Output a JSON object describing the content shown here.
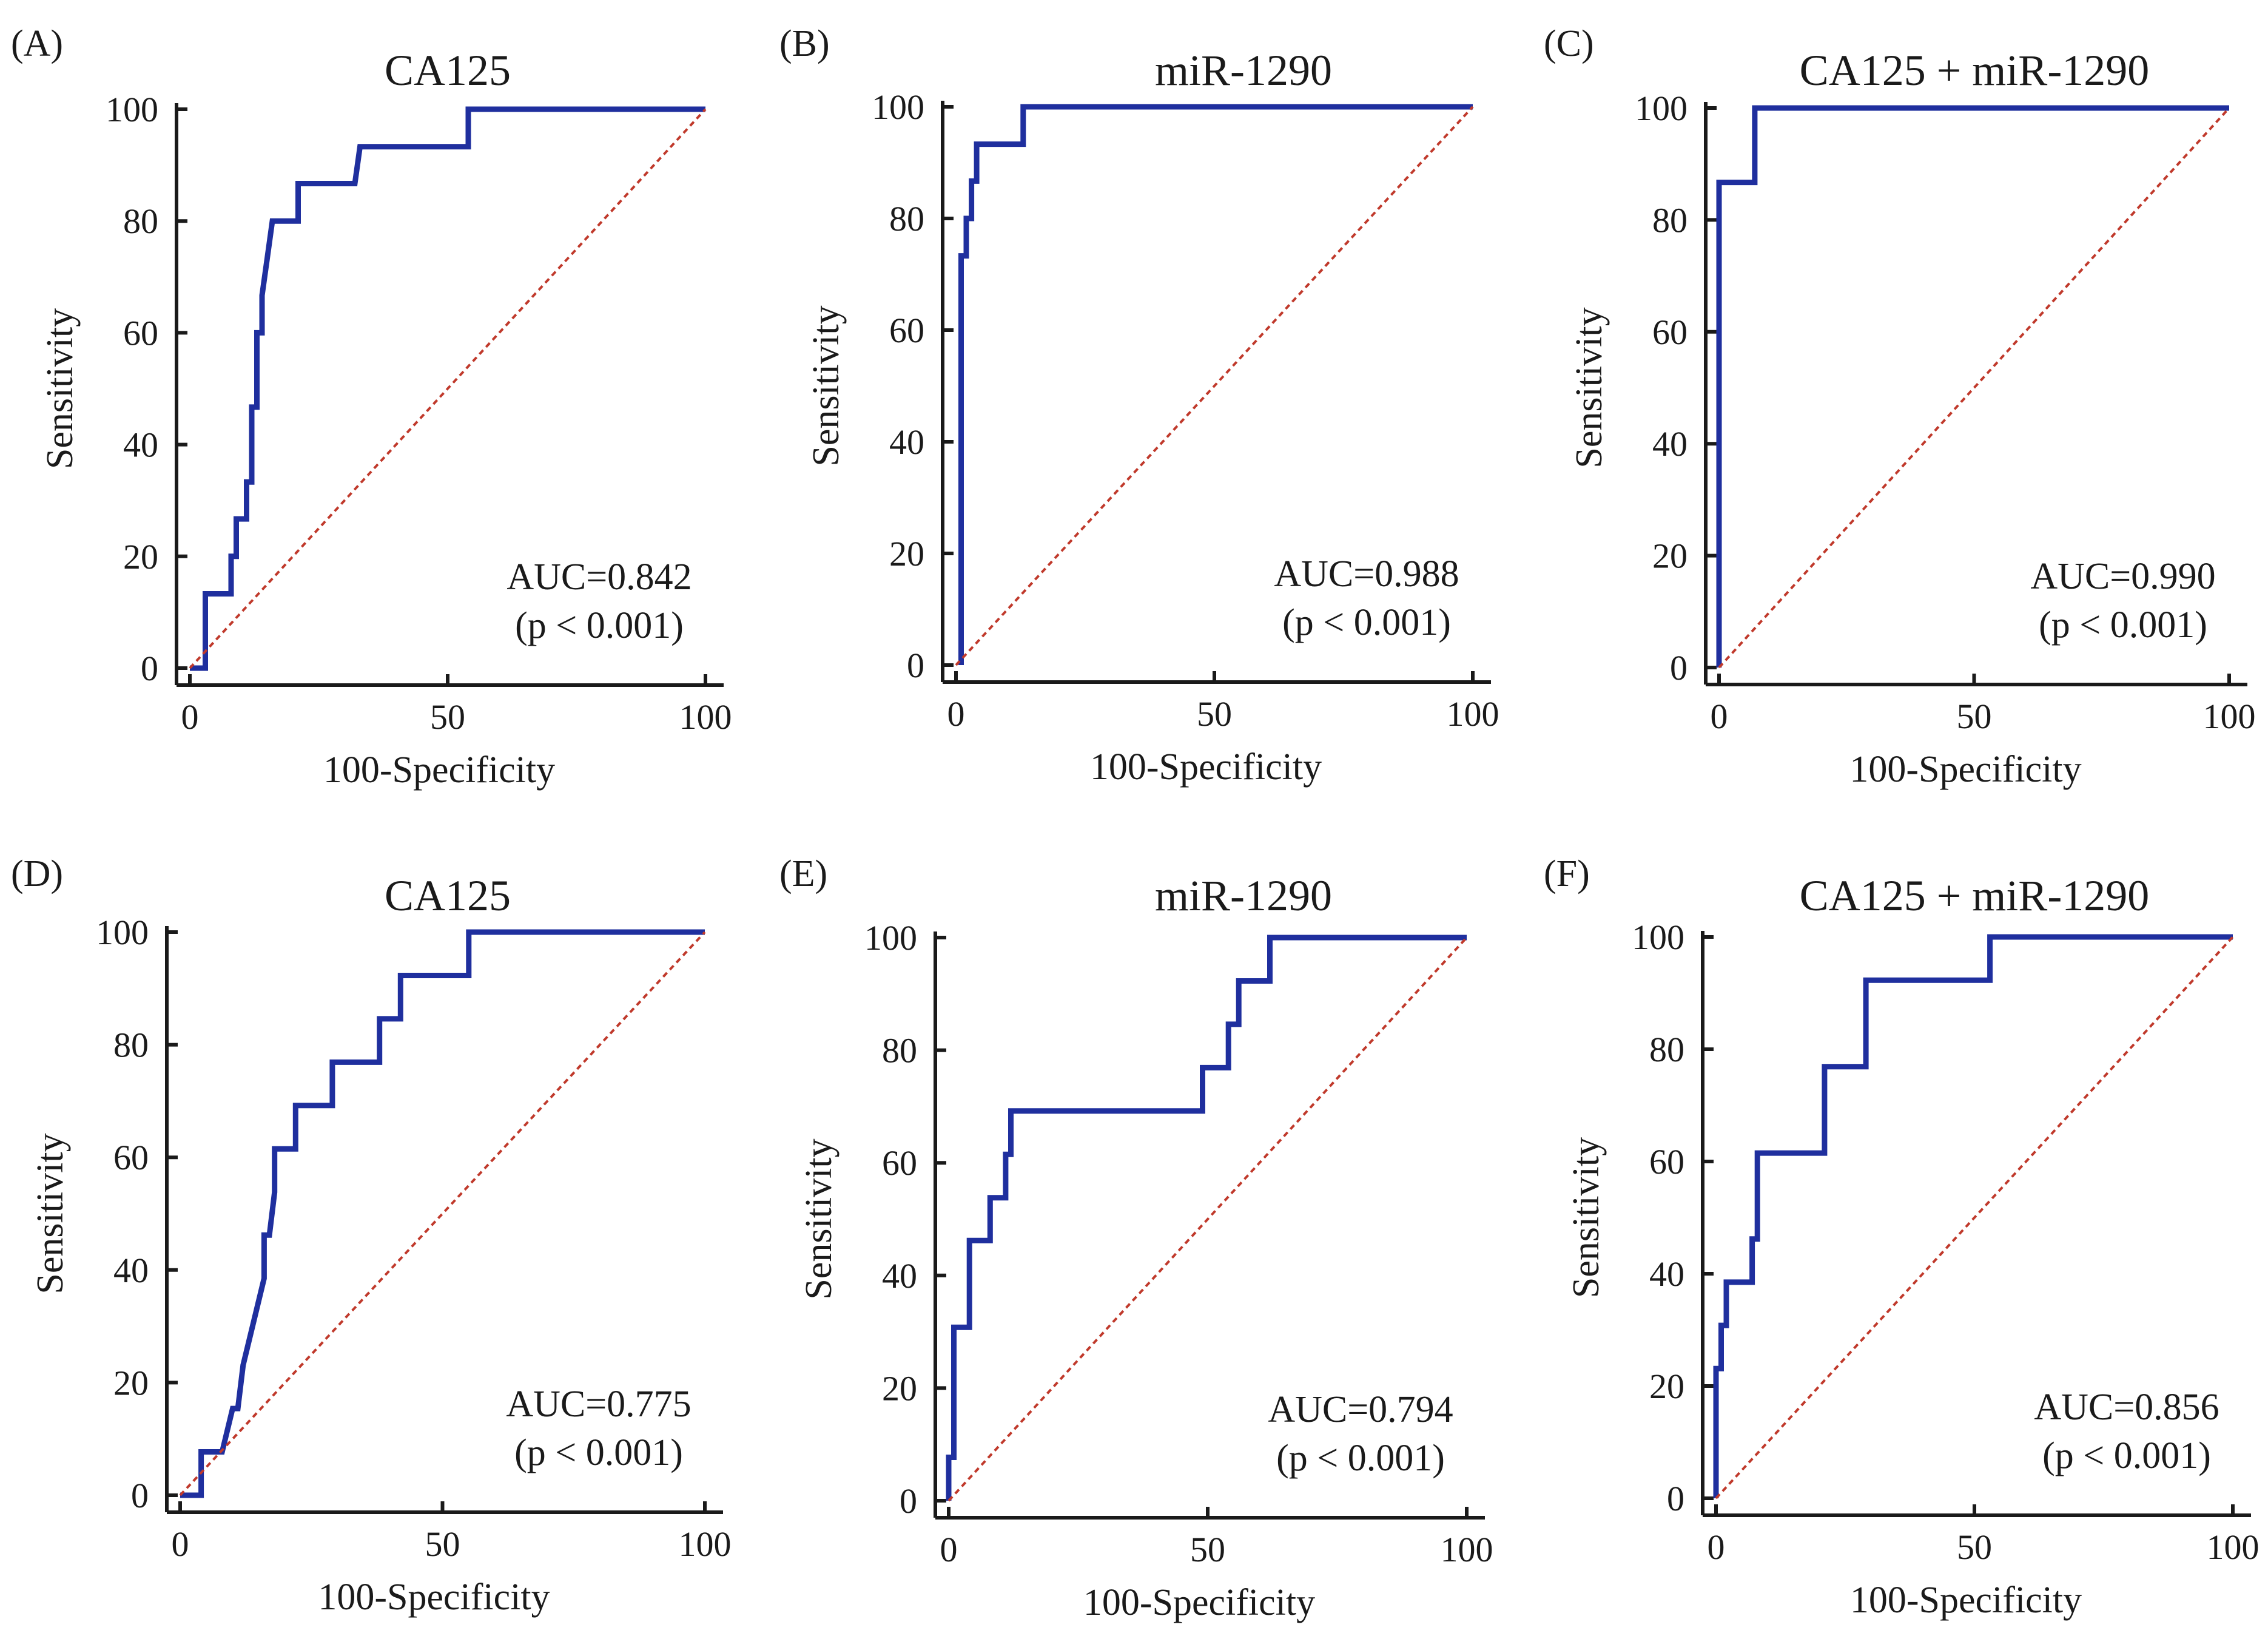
{
  "colors": {
    "roc": "#1f2f9e",
    "reference": "#c0392b",
    "axis": "#1a1a1a"
  },
  "chart_data": [
    {
      "type": "line",
      "panel_label": "(A)",
      "title": "CA125",
      "xlabel": "100-Specificity",
      "ylabel": "Sensitivity",
      "xlim": [
        0,
        100
      ],
      "ylim": [
        0,
        100
      ],
      "x_ticks": [
        "0",
        "50",
        "100"
      ],
      "y_ticks": [
        "0",
        "20",
        "40",
        "60",
        "80",
        "100"
      ],
      "auc_text": "AUC=0.842",
      "p_text": "(p < 0.001)",
      "series": [
        {
          "name": "ROC",
          "x": [
            0,
            3,
            3,
            8,
            8,
            9,
            9,
            11,
            11,
            12,
            12,
            13,
            13,
            14,
            14,
            15,
            16,
            17,
            17,
            21,
            21,
            32,
            33,
            33,
            54,
            54,
            100
          ],
          "y": [
            0,
            0,
            13.3,
            13.3,
            20,
            20,
            26.7,
            26.7,
            33.3,
            33.3,
            46.7,
            46.7,
            60,
            60,
            66.7,
            73.3,
            80,
            80,
            80,
            80,
            86.7,
            86.7,
            93.3,
            93.3,
            93.3,
            100,
            100
          ]
        },
        {
          "name": "Reference",
          "x": [
            0,
            100
          ],
          "y": [
            0,
            100
          ]
        }
      ]
    },
    {
      "type": "line",
      "panel_label": "(B)",
      "title": "miR-1290",
      "xlabel": "100-Specificity",
      "ylabel": "Sensitivity",
      "xlim": [
        0,
        100
      ],
      "ylim": [
        0,
        100
      ],
      "x_ticks": [
        "0",
        "50",
        "100"
      ],
      "y_ticks": [
        "0",
        "20",
        "40",
        "60",
        "80",
        "100"
      ],
      "auc_text": "AUC=0.988",
      "p_text": "(p < 0.001)",
      "series": [
        {
          "name": "ROC",
          "x": [
            1,
            1,
            2,
            2,
            3,
            3,
            4,
            4,
            13,
            13,
            100
          ],
          "y": [
            0,
            73.3,
            73.3,
            80,
            80,
            86.7,
            86.7,
            93.3,
            93.3,
            100,
            100
          ]
        },
        {
          "name": "Reference",
          "x": [
            0,
            100
          ],
          "y": [
            0,
            100
          ]
        }
      ]
    },
    {
      "type": "line",
      "panel_label": "(C)",
      "title": "CA125 + miR-1290",
      "xlabel": "100-Specificity",
      "ylabel": "Sensitivity",
      "xlim": [
        0,
        100
      ],
      "ylim": [
        0,
        100
      ],
      "x_ticks": [
        "0",
        "50",
        "100"
      ],
      "y_ticks": [
        "0",
        "20",
        "40",
        "60",
        "80",
        "100"
      ],
      "auc_text": "AUC=0.990",
      "p_text": "(p < 0.001)",
      "series": [
        {
          "name": "ROC",
          "x": [
            0,
            0,
            7,
            7,
            100
          ],
          "y": [
            0,
            86.7,
            86.7,
            100,
            100
          ]
        },
        {
          "name": "Reference",
          "x": [
            0,
            100
          ],
          "y": [
            0,
            100
          ]
        }
      ]
    },
    {
      "type": "line",
      "panel_label": "(D)",
      "title": "CA125",
      "xlabel": "100-Specificity",
      "ylabel": "Sensitivity",
      "xlim": [
        0,
        100
      ],
      "ylim": [
        0,
        100
      ],
      "x_ticks": [
        "0",
        "50",
        "100"
      ],
      "y_ticks": [
        "0",
        "20",
        "40",
        "60",
        "80",
        "100"
      ],
      "auc_text": "AUC=0.775",
      "p_text": "(p < 0.001)",
      "series": [
        {
          "name": "ROC",
          "x": [
            0,
            4,
            4,
            8,
            10,
            10,
            11,
            12,
            14,
            16,
            16,
            17,
            18,
            18,
            22,
            22,
            29,
            29,
            38,
            38,
            42,
            42,
            55,
            55,
            100
          ],
          "y": [
            0,
            0,
            7.7,
            7.7,
            15.4,
            15.4,
            15.4,
            23.1,
            30.8,
            38.5,
            46.2,
            46.2,
            53.8,
            61.5,
            61.5,
            69.2,
            69.2,
            76.9,
            76.9,
            84.6,
            84.6,
            92.3,
            92.3,
            100,
            100
          ]
        },
        {
          "name": "Reference",
          "x": [
            0,
            100
          ],
          "y": [
            0,
            100
          ]
        }
      ]
    },
    {
      "type": "line",
      "panel_label": "(E)",
      "title": "miR-1290",
      "xlabel": "100-Specificity",
      "ylabel": "Sensitivity",
      "xlim": [
        0,
        100
      ],
      "ylim": [
        0,
        100
      ],
      "x_ticks": [
        "0",
        "50",
        "100"
      ],
      "y_ticks": [
        "0",
        "20",
        "40",
        "60",
        "80",
        "100"
      ],
      "auc_text": "AUC=0.794",
      "p_text": "(p < 0.001)",
      "series": [
        {
          "name": "ROC",
          "x": [
            0,
            0,
            1,
            1,
            4,
            4,
            8,
            8,
            11,
            11,
            12,
            12,
            49,
            49,
            54,
            54,
            56,
            56,
            62,
            62,
            100
          ],
          "y": [
            0,
            7.7,
            7.7,
            30.8,
            30.8,
            46.2,
            46.2,
            53.8,
            53.8,
            61.5,
            61.5,
            69.2,
            69.2,
            76.9,
            76.9,
            84.6,
            84.6,
            92.3,
            92.3,
            100,
            100
          ]
        },
        {
          "name": "Reference",
          "x": [
            0,
            100
          ],
          "y": [
            0,
            100
          ]
        }
      ]
    },
    {
      "type": "line",
      "panel_label": "(F)",
      "title": "CA125 + miR-1290",
      "xlabel": "100-Specificity",
      "ylabel": "Sensitivity",
      "xlim": [
        0,
        100
      ],
      "ylim": [
        0,
        100
      ],
      "x_ticks": [
        "0",
        "50",
        "100"
      ],
      "y_ticks": [
        "0",
        "20",
        "40",
        "60",
        "80",
        "100"
      ],
      "auc_text": "AUC=0.856",
      "p_text": "(p < 0.001)",
      "series": [
        {
          "name": "ROC",
          "x": [
            0,
            0,
            1,
            1,
            2,
            2,
            3,
            3,
            7,
            7,
            8,
            8,
            21,
            21,
            29,
            29,
            53,
            53,
            100
          ],
          "y": [
            0,
            23.1,
            23.1,
            30.8,
            30.8,
            38.5,
            38.5,
            38.5,
            38.5,
            46.2,
            46.2,
            61.5,
            61.5,
            76.9,
            76.9,
            92.3,
            92.3,
            100,
            100
          ]
        },
        {
          "name": "Reference",
          "x": [
            0,
            100
          ],
          "y": [
            0,
            100
          ]
        }
      ]
    }
  ]
}
